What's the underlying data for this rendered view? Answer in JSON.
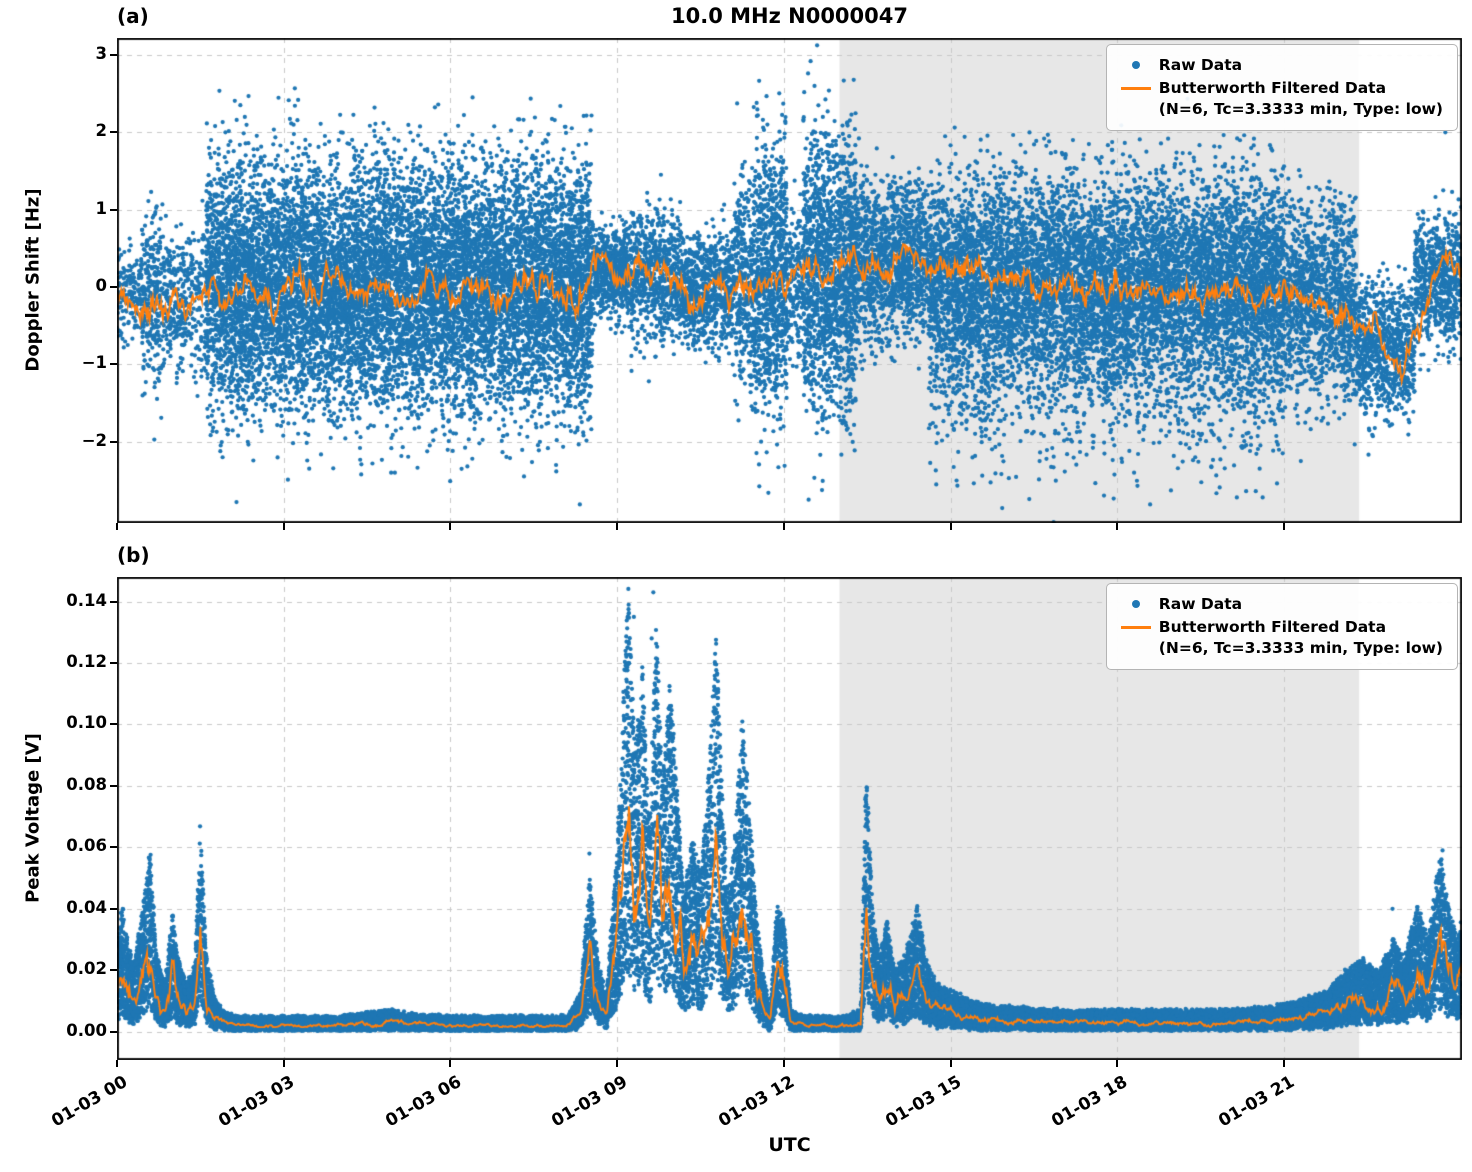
{
  "title": "10.0 MHz N0000047",
  "xlabel": "UTC",
  "legend": {
    "raw_label": "Raw Data",
    "filtered_label": "Butterworth Filtered Data",
    "filtered_sublabel": "(N=6, Tc=3.3333 min, Type: low)"
  },
  "colors": {
    "raw": "#1f77b4",
    "filtered": "#ff7f0e",
    "shade": "#e7e7e7",
    "grid": "#c9c9c9",
    "spine": "#000000"
  },
  "chart_data": [
    {
      "type": "scatter",
      "label": "(a)",
      "ylabel": "Doppler Shift [Hz]",
      "ylim": [
        -3.05,
        3.22
      ],
      "yticks": [
        3,
        2,
        1,
        0,
        -1,
        -2
      ],
      "ytick_labels": [
        "3",
        "2",
        "1",
        "0",
        "−1",
        "−2"
      ],
      "xlim_hours": [
        0,
        24.2
      ],
      "xticks": {
        "hours": [
          0,
          3,
          6,
          9,
          12,
          15,
          18,
          21
        ],
        "labels": [
          "01-03 00",
          "01-03 03",
          "01-03 06",
          "01-03 09",
          "01-03 12",
          "01-03 15",
          "01-03 18",
          "01-03 21"
        ]
      },
      "shaded_region_hours": [
        13.0,
        22.35
      ],
      "series": [
        {
          "name": "Raw Data",
          "kind": "scatter-band",
          "segments": [
            [
              0,
              0.45,
              -0.1,
              0.3,
              350
            ],
            [
              0.45,
              0.8,
              -0.1,
              0.6,
              700
            ],
            [
              0.8,
              1.35,
              -0.2,
              0.45,
              500
            ],
            [
              1.35,
              1.6,
              -0.25,
              0.5,
              350
            ],
            [
              1.6,
              8.55,
              0,
              0.8,
              1600
            ],
            [
              8.55,
              9.25,
              0.2,
              0.28,
              900
            ],
            [
              9.25,
              10.15,
              0.15,
              0.42,
              750
            ],
            [
              10.15,
              11.1,
              -0.05,
              0.35,
              800
            ],
            [
              11.1,
              11.45,
              0,
              0.7,
              900
            ],
            [
              11.45,
              12.05,
              0.1,
              0.9,
              1500
            ],
            [
              12.05,
              12.35,
              0.05,
              0.45,
              600
            ],
            [
              12.35,
              13.3,
              0.15,
              0.9,
              1600
            ],
            [
              13.3,
              14.6,
              0.35,
              0.5,
              1000
            ],
            [
              14.6,
              21,
              0.15,
              0.6,
              900
            ],
            [
              14.6,
              21,
              -0.45,
              0.85,
              500
            ],
            [
              21,
              22.3,
              -0.15,
              0.62,
              1000
            ],
            [
              22.3,
              23.35,
              -0.75,
              0.42,
              800
            ],
            [
              23.35,
              24.2,
              0.1,
              0.4,
              800
            ]
          ],
          "outliers": [
            [
              1.9,
              -2.2
            ],
            [
              2.15,
              -2.78
            ],
            [
              3.2,
              2.57
            ],
            [
              2.3,
              2.2
            ],
            [
              5.0,
              -2.4
            ],
            [
              6.2,
              -2.35
            ],
            [
              7.9,
              -2.3
            ],
            [
              12.48,
              2.92
            ],
            [
              12.55,
              2.6
            ],
            [
              12.62,
              2.35
            ],
            [
              12.7,
              2.2
            ],
            [
              12.35,
              2.15
            ],
            [
              16.6,
              -2.25
            ],
            [
              18.3,
              -2.4
            ],
            [
              19.4,
              -2.2
            ],
            [
              21.3,
              -2.25
            ],
            [
              23.9,
              2.0
            ],
            [
              14.9,
              1.95
            ],
            [
              17.2,
              1.9
            ]
          ]
        },
        {
          "name": "Butterworth Filtered Data",
          "kind": "line",
          "jitter_abs": 0.32,
          "jitter_rel": 0,
          "points": [
            [
              0,
              -0.15
            ],
            [
              0.4,
              -0.22
            ],
            [
              0.8,
              -0.1
            ],
            [
              1.2,
              -0.25
            ],
            [
              1.6,
              -0.1
            ],
            [
              2,
              -0.18
            ],
            [
              2.4,
              0.05
            ],
            [
              2.8,
              -0.2
            ],
            [
              3.2,
              0.02
            ],
            [
              3.6,
              -0.12
            ],
            [
              4,
              0.1
            ],
            [
              4.4,
              -0.08
            ],
            [
              4.8,
              0.08
            ],
            [
              5.2,
              -0.12
            ],
            [
              5.6,
              0.05
            ],
            [
              6,
              -0.1
            ],
            [
              6.4,
              0.02
            ],
            [
              6.8,
              -0.14
            ],
            [
              7.2,
              0.06
            ],
            [
              7.6,
              -0.05
            ],
            [
              8,
              -0.12
            ],
            [
              8.3,
              -0.18
            ],
            [
              8.5,
              0.05
            ],
            [
              8.65,
              0.32
            ],
            [
              8.9,
              0.22
            ],
            [
              9.1,
              0.12
            ],
            [
              9.35,
              0.28
            ],
            [
              9.6,
              0.18
            ],
            [
              9.85,
              0.26
            ],
            [
              10.1,
              0.05
            ],
            [
              10.3,
              -0.22
            ],
            [
              10.45,
              -0.3
            ],
            [
              10.6,
              -0.12
            ],
            [
              10.8,
              -0.02
            ],
            [
              11,
              0.05
            ],
            [
              11.2,
              0.12
            ],
            [
              11.4,
              0.02
            ],
            [
              11.6,
              0.08
            ],
            [
              11.8,
              0.16
            ],
            [
              12,
              0.08
            ],
            [
              12.2,
              0.14
            ],
            [
              12.5,
              0.2
            ],
            [
              12.8,
              0.12
            ],
            [
              13,
              0.3
            ],
            [
              13.15,
              0.55
            ],
            [
              13.3,
              0.45
            ],
            [
              13.5,
              0.3
            ],
            [
              13.7,
              0.25
            ],
            [
              13.9,
              0.32
            ],
            [
              14.1,
              0.45
            ],
            [
              14.3,
              0.52
            ],
            [
              14.5,
              0.35
            ],
            [
              14.7,
              0.22
            ],
            [
              15,
              0.12
            ],
            [
              15.4,
              0.18
            ],
            [
              15.8,
              0.05
            ],
            [
              16.2,
              0.12
            ],
            [
              16.6,
              -0.02
            ],
            [
              17,
              0.08
            ],
            [
              17.4,
              -0.06
            ],
            [
              17.8,
              0.04
            ],
            [
              18.2,
              -0.08
            ],
            [
              18.6,
              0.02
            ],
            [
              19,
              -0.06
            ],
            [
              19.4,
              -0.12
            ],
            [
              19.8,
              -0.02
            ],
            [
              20.2,
              -0.1
            ],
            [
              20.6,
              -0.05
            ],
            [
              21,
              -0.15
            ],
            [
              21.4,
              -0.12
            ],
            [
              21.8,
              -0.25
            ],
            [
              22.2,
              -0.35
            ],
            [
              22.5,
              -0.5
            ],
            [
              22.8,
              -0.62
            ],
            [
              23,
              -0.9
            ],
            [
              23.15,
              -1.05
            ],
            [
              23.3,
              -0.75
            ],
            [
              23.5,
              -0.35
            ],
            [
              23.7,
              0.05
            ],
            [
              23.85,
              0.42
            ],
            [
              24,
              0.28
            ],
            [
              24.2,
              0.18
            ]
          ]
        }
      ]
    },
    {
      "type": "scatter",
      "label": "(b)",
      "ylabel": "Peak Voltage [V]",
      "ylim": [
        -0.0092,
        0.148
      ],
      "yticks": [
        0.14,
        0.12,
        0.1,
        0.08,
        0.06,
        0.04,
        0.02,
        0
      ],
      "ytick_labels": [
        "0.14",
        "0.12",
        "0.10",
        "0.08",
        "0.06",
        "0.04",
        "0.02",
        "0.00"
      ],
      "xlim_hours": [
        0,
        24.2
      ],
      "xticks": {
        "hours": [
          0,
          3,
          6,
          9,
          12,
          15,
          18,
          21
        ],
        "labels": [
          "01-03 00",
          "01-03 03",
          "01-03 06",
          "01-03 09",
          "01-03 12",
          "01-03 15",
          "01-03 18",
          "01-03 21"
        ]
      },
      "shaded_region_hours": [
        13.0,
        22.35
      ],
      "clamp_min": 0.0015,
      "series": [
        {
          "name": "Raw Data",
          "kind": "scatter-around-line",
          "per_hour": 1300,
          "factor_min": 0.3,
          "factor_max": 2.15,
          "base_noise": 0.0012,
          "outliers": [
            [
              9.65,
              0.143
            ],
            [
              9.3,
              0.135
            ],
            [
              9.62,
              0.128
            ],
            [
              10.75,
              0.1
            ],
            [
              11.3,
              0.09
            ],
            [
              8.5,
              0.058
            ],
            [
              13.45,
              0.06
            ],
            [
              23.85,
              0.059
            ],
            [
              1.5,
              0.048
            ],
            [
              22.95,
              0.04
            ],
            [
              9.2,
              0.12
            ],
            [
              9.7,
              0.115
            ],
            [
              10.78,
              0.092
            ],
            [
              11.28,
              0.082
            ]
          ]
        },
        {
          "name": "Butterworth Filtered Data",
          "kind": "line",
          "jitter_abs": 0,
          "jitter_rel": 0.5,
          "points": [
            [
              0,
              0.012
            ],
            [
              0.1,
              0.02
            ],
            [
              0.2,
              0.013
            ],
            [
              0.3,
              0.01
            ],
            [
              0.45,
              0.018
            ],
            [
              0.6,
              0.028
            ],
            [
              0.7,
              0.012
            ],
            [
              0.85,
              0.007
            ],
            [
              1,
              0.018
            ],
            [
              1.1,
              0.011
            ],
            [
              1.25,
              0.007
            ],
            [
              1.4,
              0.01
            ],
            [
              1.5,
              0.032
            ],
            [
              1.6,
              0.012
            ],
            [
              1.75,
              0.005
            ],
            [
              1.9,
              0.003
            ],
            [
              2.1,
              0.002
            ],
            [
              3,
              0.002
            ],
            [
              4,
              0.002
            ],
            [
              4.9,
              0.003
            ],
            [
              5.2,
              0.0025
            ],
            [
              6,
              0.002
            ],
            [
              7,
              0.002
            ],
            [
              8.1,
              0.002
            ],
            [
              8.35,
              0.006
            ],
            [
              8.5,
              0.024
            ],
            [
              8.65,
              0.011
            ],
            [
              8.8,
              0.005
            ],
            [
              9,
              0.028
            ],
            [
              9.1,
              0.05
            ],
            [
              9.2,
              0.067
            ],
            [
              9.32,
              0.042
            ],
            [
              9.45,
              0.056
            ],
            [
              9.58,
              0.03
            ],
            [
              9.7,
              0.062
            ],
            [
              9.82,
              0.038
            ],
            [
              9.95,
              0.054
            ],
            [
              10.1,
              0.034
            ],
            [
              10.2,
              0.02
            ],
            [
              10.35,
              0.03
            ],
            [
              10.5,
              0.024
            ],
            [
              10.65,
              0.04
            ],
            [
              10.78,
              0.062
            ],
            [
              10.9,
              0.034
            ],
            [
              11,
              0.02
            ],
            [
              11.12,
              0.03
            ],
            [
              11.25,
              0.048
            ],
            [
              11.38,
              0.034
            ],
            [
              11.5,
              0.018
            ],
            [
              11.62,
              0.009
            ],
            [
              11.75,
              0.003
            ],
            [
              11.88,
              0.02
            ],
            [
              12,
              0.017
            ],
            [
              12.12,
              0.003
            ],
            [
              12.4,
              0.002
            ],
            [
              13.1,
              0.002
            ],
            [
              13.38,
              0.003
            ],
            [
              13.48,
              0.04
            ],
            [
              13.6,
              0.018
            ],
            [
              13.72,
              0.011
            ],
            [
              13.85,
              0.017
            ],
            [
              14,
              0.009
            ],
            [
              14.2,
              0.012
            ],
            [
              14.4,
              0.019
            ],
            [
              14.55,
              0.011
            ],
            [
              14.75,
              0.007
            ],
            [
              15,
              0.006
            ],
            [
              15.5,
              0.004
            ],
            [
              16,
              0.0035
            ],
            [
              17,
              0.003
            ],
            [
              18,
              0.003
            ],
            [
              19,
              0.003
            ],
            [
              20,
              0.003
            ],
            [
              20.8,
              0.0035
            ],
            [
              21.3,
              0.0045
            ],
            [
              21.8,
              0.006
            ],
            [
              22.1,
              0.009
            ],
            [
              22.4,
              0.011
            ],
            [
              22.7,
              0.009
            ],
            [
              22.95,
              0.014
            ],
            [
              23.15,
              0.011
            ],
            [
              23.4,
              0.019
            ],
            [
              23.6,
              0.014
            ],
            [
              23.8,
              0.028
            ],
            [
              23.95,
              0.019
            ],
            [
              24.1,
              0.014
            ],
            [
              24.2,
              0.017
            ]
          ]
        }
      ]
    }
  ]
}
